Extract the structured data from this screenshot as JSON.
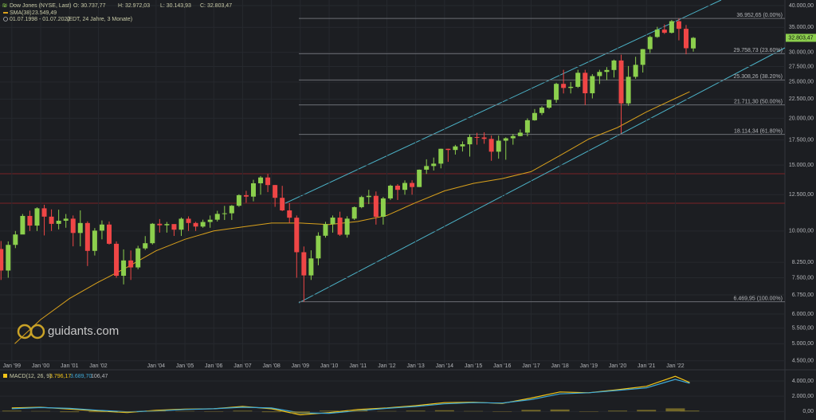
{
  "header": {
    "symbol": "Dow Jones (NYSE, Last)",
    "open": "O: 30.737,77",
    "high": "H: 32.972,03",
    "low": "L: 30.143,93",
    "close": "C: 32.803,47",
    "period": "01.07.1998 - 01.07.2022",
    "timezone": "(EDT, 24 Jahre, 3 Monate)"
  },
  "logo": "guidants.com",
  "chart_data": [
    {
      "type": "candlestick",
      "x": [
        1998.5,
        1998.75,
        1999,
        1999.25,
        1999.5,
        1999.75,
        2000,
        2000.25,
        2000.5,
        2000.75,
        2001,
        2001.25,
        2001.5,
        2001.75,
        2002,
        2002.25,
        2002.5,
        2002.75,
        2003,
        2003.25,
        2003.5,
        2003.75,
        2004,
        2004.25,
        2004.5,
        2004.75,
        2005,
        2005.25,
        2005.5,
        2005.75,
        2006,
        2006.25,
        2006.5,
        2006.75,
        2007,
        2007.25,
        2007.5,
        2007.75,
        2008,
        2008.25,
        2008.5,
        2008.75,
        2009,
        2009.25,
        2009.5,
        2009.75,
        2010,
        2010.25,
        2010.5,
        2010.75,
        2011,
        2011.25,
        2011.5,
        2011.75,
        2012,
        2012.25,
        2012.5,
        2012.75,
        2013,
        2013.25,
        2013.5,
        2013.75,
        2014,
        2014.25,
        2014.5,
        2014.75,
        2015,
        2015.25,
        2015.5,
        2015.75,
        2016,
        2016.25,
        2016.5,
        2016.75,
        2017,
        2017.25,
        2017.5,
        2017.75,
        2018,
        2018.25,
        2018.5,
        2018.75,
        2019,
        2019.25,
        2019.5,
        2019.75,
        2020,
        2020.25,
        2020.5,
        2020.75,
        2021,
        2021.25,
        2021.5,
        2021.75,
        2022,
        2022.25,
        2022.5
      ],
      "open": [
        8950,
        7840,
        9181,
        9786,
        10970,
        10337,
        11497,
        10922,
        10448,
        10651,
        10787,
        9879,
        10502,
        8848,
        10022,
        10404,
        9243,
        7592,
        8342,
        7992,
        8985,
        9275,
        10454,
        10358,
        10435,
        10080,
        10783,
        10504,
        10275,
        10569,
        10718,
        11109,
        11150,
        11679,
        12463,
        12354,
        13409,
        13896,
        13265,
        12263,
        11350,
        10851,
        8776,
        7609,
        8447,
        9712,
        10428,
        10857,
        9774,
        10788,
        11578,
        12320,
        12414,
        10913,
        12218,
        13212,
        12880,
        13437,
        13104,
        14579,
        14910,
        15130,
        16577,
        16458,
        16827,
        17043,
        17823,
        17776,
        17620,
        16285,
        17425,
        17685,
        17930,
        18308,
        19763,
        20663,
        21350,
        22405,
        24719,
        24103,
        24271,
        26458,
        23327,
        25929,
        26600,
        26917,
        28538,
        21917,
        25813,
        27782,
        30606,
        32982,
        34503,
        33844,
        36338,
        34678,
        30737.77
      ],
      "high": [
        9400,
        9380,
        10000,
        11100,
        11330,
        11570,
        11750,
        11420,
        11400,
        11100,
        11000,
        11350,
        10610,
        10180,
        10670,
        10600,
        9380,
        8930,
        8870,
        9130,
        9690,
        10500,
        10760,
        10570,
        10400,
        10870,
        10940,
        10580,
        10720,
        11000,
        11320,
        11670,
        11730,
        12530,
        12800,
        13700,
        14020,
        14200,
        13280,
        13200,
        11870,
        11000,
        9090,
        8880,
        9920,
        10580,
        11000,
        11260,
        10950,
        11630,
        12420,
        12880,
        12750,
        12330,
        13300,
        13340,
        13650,
        13660,
        14600,
        15540,
        15710,
        16590,
        16590,
        16980,
        17350,
        18100,
        18290,
        18350,
        17990,
        17980,
        17790,
        18170,
        18670,
        19990,
        21170,
        21540,
        22420,
        24880,
        26950,
        25000,
        26950,
        26950,
        26240,
        26950,
        27400,
        28700,
        29570,
        27580,
        29200,
        30640,
        33260,
        35100,
        35630,
        36600,
        36950,
        35500,
        32972.03
      ],
      "low": [
        7400,
        7500,
        9000,
        9800,
        10000,
        10000,
        9730,
        10000,
        10100,
        10200,
        9100,
        9100,
        8060,
        8600,
        9500,
        9200,
        7500,
        7200,
        7400,
        7900,
        8900,
        9200,
        9900,
        9900,
        9700,
        9700,
        10000,
        10000,
        10200,
        10200,
        10600,
        10700,
        10700,
        11600,
        11900,
        12000,
        12500,
        12700,
        11600,
        11300,
        10500,
        7500,
        6470,
        7400,
        8100,
        9600,
        9900,
        9700,
        9600,
        10700,
        11500,
        11800,
        10400,
        10400,
        12100,
        12100,
        12500,
        12500,
        13100,
        14200,
        14500,
        14700,
        15300,
        16000,
        16300,
        15800,
        17000,
        17100,
        15400,
        15600,
        15500,
        17000,
        17900,
        17900,
        19700,
        20400,
        21200,
        22000,
        23300,
        23300,
        24100,
        21700,
        22600,
        24700,
        25300,
        25700,
        18214,
        21600,
        25500,
        26500,
        29900,
        32800,
        33600,
        33700,
        32300,
        29650,
        30143.93
      ],
      "close": [
        7840,
        9181,
        9786,
        10970,
        10337,
        11497,
        10922,
        10448,
        10651,
        10787,
        9879,
        10502,
        8848,
        10022,
        10404,
        9243,
        7592,
        8342,
        7992,
        8985,
        9275,
        10454,
        10358,
        10435,
        10080,
        10783,
        10504,
        10275,
        10569,
        10718,
        11109,
        11150,
        11679,
        12463,
        12354,
        13409,
        13896,
        13265,
        12263,
        11350,
        10851,
        8776,
        7609,
        8447,
        9712,
        10428,
        10857,
        9774,
        10788,
        11578,
        12320,
        12414,
        10913,
        12218,
        13212,
        12880,
        13437,
        13104,
        14579,
        14910,
        15130,
        16577,
        16458,
        16827,
        17043,
        17823,
        17776,
        17620,
        16285,
        17425,
        17685,
        17930,
        18308,
        19763,
        20663,
        21350,
        22405,
        24719,
        24103,
        24271,
        26458,
        23327,
        25929,
        26600,
        26917,
        28538,
        21917,
        25813,
        27782,
        30606,
        32982,
        34503,
        33844,
        36338,
        34678,
        30775,
        32803.47
      ],
      "up_color": "#8ccf4d",
      "down_color": "#ef4646",
      "xlim": [
        1998.59,
        2025.8
      ],
      "xticks": [
        {
          "value": 1999,
          "label": "Jan '99"
        },
        {
          "value": 2000,
          "label": "Jan '00"
        },
        {
          "value": 2001,
          "label": "Jan '01"
        },
        {
          "value": 2002,
          "label": "Jan '02"
        },
        {
          "value": 2004,
          "label": "Jan '04"
        },
        {
          "value": 2005,
          "label": "Jan '05"
        },
        {
          "value": 2006,
          "label": "Jan '06"
        },
        {
          "value": 2007,
          "label": "Jan '07"
        },
        {
          "value": 2008,
          "label": "Jan '08"
        },
        {
          "value": 2009,
          "label": "Jan '09"
        },
        {
          "value": 2010,
          "label": "Jan '10"
        },
        {
          "value": 2011,
          "label": "Jan '11"
        },
        {
          "value": 2012,
          "label": "Jan '12"
        },
        {
          "value": 2013,
          "label": "Jan '13"
        },
        {
          "value": 2014,
          "label": "Jan '14"
        },
        {
          "value": 2015,
          "label": "Jan '15"
        },
        {
          "value": 2016,
          "label": "Jan '16"
        },
        {
          "value": 2017,
          "label": "Jan '17"
        },
        {
          "value": 2018,
          "label": "Jan '18"
        },
        {
          "value": 2019,
          "label": "Jan '19"
        },
        {
          "value": 2020,
          "label": "Jan '20"
        },
        {
          "value": 2021,
          "label": "Jan '21"
        },
        {
          "value": 2022,
          "label": "Jan '22"
        }
      ],
      "ylim": [
        4300,
        41400
      ],
      "log_scale": true,
      "grid": true,
      "yticks": [
        {
          "value": 40000,
          "label": "40.000,00"
        },
        {
          "value": 35000,
          "label": "35.000,00"
        },
        {
          "value": 30000,
          "label": "30.000,00"
        },
        {
          "value": 27500,
          "label": "27.500,00"
        },
        {
          "value": 25000,
          "label": "25.000,00"
        },
        {
          "value": 22500,
          "label": "22.500,00"
        },
        {
          "value": 20000,
          "label": "20.000,00"
        },
        {
          "value": 17500,
          "label": "17.500,00"
        },
        {
          "value": 15000,
          "label": "15.000,00"
        },
        {
          "value": 12500,
          "label": "12.500,00"
        },
        {
          "value": 10000,
          "label": "10.000,00"
        },
        {
          "value": 8250,
          "label": "8.250,00"
        },
        {
          "value": 7500,
          "label": "7.500,00"
        },
        {
          "value": 6750,
          "label": "6.750,00"
        },
        {
          "value": 6000,
          "label": "6.000,00"
        },
        {
          "value": 5500,
          "label": "5.500,00"
        },
        {
          "value": 5000,
          "label": "5.000,00"
        },
        {
          "value": 4500,
          "label": "4.500,00"
        }
      ],
      "last_price": {
        "value": 32803.47,
        "label": "32.803,47"
      },
      "levels": [
        {
          "value": 36952.65,
          "label": "36.952,65 (0.00%)"
        },
        {
          "value": 29758.73,
          "label": "29.758,73 (23.60%)"
        },
        {
          "value": 25308.26,
          "label": "25.308,26 (38.20%)"
        },
        {
          "value": 21711.3,
          "label": "21.711,30 (50.00%)"
        },
        {
          "value": 18114.34,
          "label": "18.114,34 (61.80%)"
        },
        {
          "value": 6469.95,
          "label": "6.469,95 (100.00%)"
        }
      ],
      "overlays": [
        {
          "type": "line",
          "name": "SMA(38)",
          "value_label": "23.549,49",
          "color": "#d9a11c",
          "x": [
            1999.1,
            2000,
            2001,
            2002,
            2003,
            2004,
            2005,
            2006,
            2007,
            2008,
            2009,
            2010,
            2011,
            2012,
            2013,
            2014,
            2015,
            2016,
            2017,
            2018,
            2019,
            2020,
            2021,
            2022,
            2022.5
          ],
          "values": [
            5000,
            5800,
            6600,
            7300,
            8000,
            8850,
            9500,
            10000,
            10250,
            10500,
            10500,
            10400,
            10600,
            11000,
            11900,
            12800,
            13400,
            13800,
            14400,
            15900,
            17600,
            18900,
            20800,
            22600,
            23549.49
          ]
        }
      ]
    },
    {
      "type": "macd",
      "title": "MACD(12, 26, 9)",
      "x": [
        1999,
        2000,
        2001,
        2002,
        2003,
        2004,
        2005,
        2006,
        2007,
        2008,
        2009,
        2010,
        2011,
        2012,
        2013,
        2014,
        2015,
        2016,
        2017,
        2018,
        2019,
        2020,
        2021,
        2022,
        2022.5
      ],
      "ylim": [
        -500,
        5250
      ],
      "yticks": [
        {
          "value": 4000,
          "label": "4.000,00"
        },
        {
          "value": 2000,
          "label": "2.000,00"
        },
        {
          "value": 0,
          "label": "0,00"
        }
      ],
      "series": [
        {
          "kind": "line",
          "color": "#f2c418",
          "value_label": "3.796,17",
          "values": [
            450,
            550,
            300,
            50,
            -150,
            150,
            300,
            350,
            650,
            350,
            -450,
            -150,
            250,
            450,
            750,
            1150,
            1200,
            1050,
            1750,
            2550,
            2450,
            2850,
            3300,
            4600,
            3796.17
          ]
        },
        {
          "kind": "line",
          "color": "#3fa9d6",
          "value_label": "3.689,70",
          "values": [
            350,
            500,
            400,
            150,
            -50,
            50,
            250,
            350,
            550,
            450,
            -200,
            -250,
            100,
            400,
            650,
            1000,
            1150,
            1100,
            1550,
            2300,
            2450,
            2750,
            3100,
            4200,
            3689.7
          ]
        },
        {
          "kind": "bar",
          "color": "#8a7a2a",
          "value_label": "106,47",
          "values": [
            100,
            50,
            -100,
            -100,
            -100,
            100,
            50,
            0,
            100,
            -100,
            -250,
            100,
            150,
            50,
            100,
            150,
            50,
            -50,
            200,
            250,
            0,
            100,
            200,
            400,
            106.47
          ]
        }
      ]
    }
  ]
}
